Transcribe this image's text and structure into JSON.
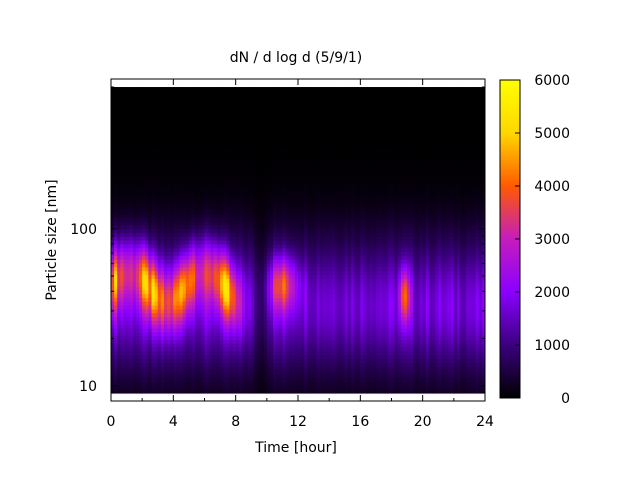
{
  "chart_data": {
    "type": "heatmap",
    "title": "dN / d log d (5/9/1)",
    "xlabel": "Time [hour]",
    "ylabel": "Particle size [nm]",
    "xlim": [
      0,
      24
    ],
    "ylim": [
      8,
      900
    ],
    "y_scale": "log",
    "x_ticks": [
      "0",
      "4",
      "8",
      "12",
      "16",
      "20",
      "24"
    ],
    "y_ticks": [
      "10",
      "100"
    ],
    "colorbar": {
      "range": [
        0,
        6000
      ],
      "ticks": [
        "0",
        "1000",
        "2000",
        "3000",
        "4000",
        "5000",
        "6000"
      ],
      "colormap": [
        "#000000",
        "#3b007f",
        "#8a00ff",
        "#c51dbd",
        "#ff5a00",
        "#ffd700",
        "#ffff00"
      ]
    },
    "size_range_nm": [
      9,
      800
    ],
    "bands": [
      {
        "time": [
          0,
          9
        ],
        "mode_size_nm": 45,
        "peak_value": 4200
      },
      {
        "time": [
          10,
          12
        ],
        "mode_size_nm": 45,
        "peak_value": 3500
      },
      {
        "time": [
          18.5,
          19.2
        ],
        "mode_size_nm": 38,
        "peak_value": 3200
      }
    ]
  }
}
